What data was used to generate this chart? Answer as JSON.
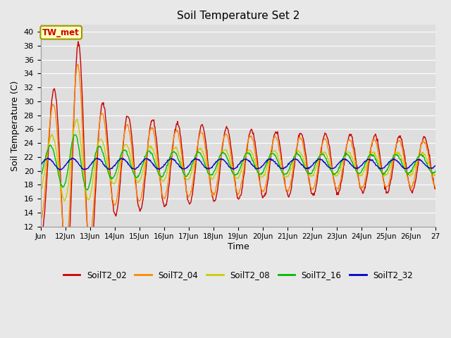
{
  "title": "Soil Temperature Set 2",
  "xlabel": "Time",
  "ylabel": "Soil Temperature (C)",
  "ylim": [
    12,
    41
  ],
  "yticks": [
    12,
    14,
    16,
    18,
    20,
    22,
    24,
    26,
    28,
    30,
    32,
    34,
    36,
    38,
    40
  ],
  "annotation": "TW_met",
  "series_colors": {
    "SoilT2_02": "#cc0000",
    "SoilT2_04": "#ff8800",
    "SoilT2_08": "#cccc00",
    "SoilT2_16": "#00bb00",
    "SoilT2_32": "#0000cc"
  },
  "plot_bg_color": "#dedede",
  "fig_bg_color": "#e8e8e8",
  "linewidth": 1.0,
  "xtick_labels": [
    "Jun",
    "12Jun",
    "13Jun",
    "14Jun",
    "15Jun",
    "16Jun",
    "17Jun",
    "18Jun",
    "19Jun",
    "20Jun",
    "21Jun",
    "22Jun",
    "23Jun",
    "24Jun",
    "25Jun",
    "26Jun",
    "27"
  ]
}
